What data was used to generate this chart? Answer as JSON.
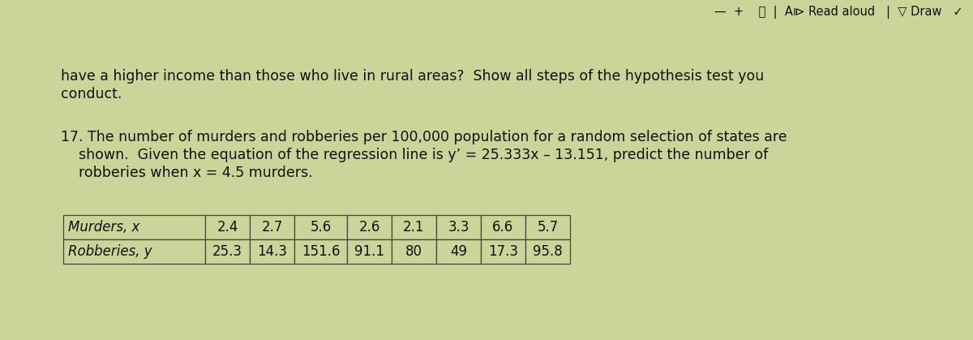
{
  "bg_color": "#cdd49a",
  "toolbar_bg": "#d8dfc8",
  "text_color": "#111111",
  "table_border_color": "#444444",
  "table_bg": "#cdd49a",
  "font_size_body": 12.5,
  "font_size_toolbar": 10.5,
  "para1_line1": "have a higher income than those who live in rural areas?  Show all steps of the hypothesis test you",
  "para1_line2": "conduct.",
  "para2_line1": "17. The number of murders and robberies per 100,000 population for a random selection of states are",
  "para2_line2": "    shown.  Given the equation of the regression line is y’ = 25.333x – 13.151, predict the number of",
  "para2_line3": "    robberies when x = 4.5 murders.",
  "table_murders": [
    "2.4",
    "2.7",
    "5.6",
    "2.6",
    "2.1",
    "3.3",
    "6.6",
    "5.7"
  ],
  "table_robberies": [
    "25.3",
    "14.3",
    "151.6",
    "91.1",
    "80",
    "49",
    "17.3",
    "95.8"
  ],
  "toolbar_text_right": "—  +  🔍  ⬜  |  A⧐ Read aloud   |  ▽ Draw   ✓"
}
